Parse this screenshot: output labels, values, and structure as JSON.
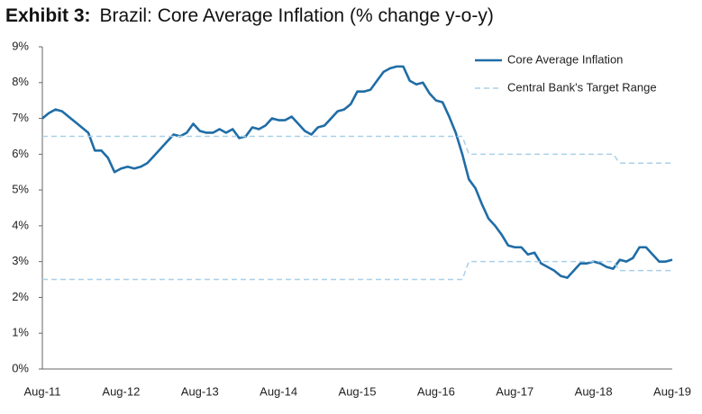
{
  "chart_data": {
    "type": "line",
    "exhibit": "Exhibit 3:",
    "title": "Brazil: Core Average Inflation (% change y-o-y)",
    "categories": [
      "Aug-11",
      null,
      null,
      null,
      null,
      null,
      null,
      null,
      null,
      null,
      null,
      null,
      "Aug-12",
      null,
      null,
      null,
      null,
      null,
      null,
      null,
      null,
      null,
      null,
      null,
      "Aug-13",
      null,
      null,
      null,
      null,
      null,
      null,
      null,
      null,
      null,
      null,
      null,
      "Aug-14",
      null,
      null,
      null,
      null,
      null,
      null,
      null,
      null,
      null,
      null,
      null,
      "Aug-15",
      null,
      null,
      null,
      null,
      null,
      null,
      null,
      null,
      null,
      null,
      null,
      "Aug-16",
      null,
      null,
      null,
      null,
      null,
      null,
      null,
      null,
      null,
      null,
      null,
      "Aug-17",
      null,
      null,
      null,
      null,
      null,
      null,
      null,
      null,
      null,
      null,
      null,
      "Aug-18",
      null,
      null,
      null,
      null,
      null,
      null,
      null,
      null,
      null,
      null,
      null,
      "Aug-19"
    ],
    "series": [
      {
        "name": "Core Average Inflation",
        "color": "#1f6da6",
        "dashed": false,
        "values": [
          7.0,
          7.15,
          7.25,
          7.2,
          7.05,
          6.9,
          6.75,
          6.6,
          6.1,
          6.1,
          5.9,
          5.5,
          5.6,
          5.65,
          5.6,
          5.65,
          5.75,
          5.95,
          6.15,
          6.35,
          6.55,
          6.5,
          6.6,
          6.85,
          6.65,
          6.6,
          6.6,
          6.7,
          6.6,
          6.7,
          6.45,
          6.5,
          6.75,
          6.7,
          6.8,
          7.0,
          6.95,
          6.95,
          7.05,
          6.85,
          6.65,
          6.55,
          6.75,
          6.8,
          7.0,
          7.2,
          7.25,
          7.4,
          7.75,
          7.75,
          7.8,
          8.05,
          8.3,
          8.4,
          8.45,
          8.45,
          8.05,
          7.95,
          8.0,
          7.7,
          7.5,
          7.45,
          7.05,
          6.6,
          6.0,
          5.3,
          5.05,
          4.6,
          4.2,
          4.0,
          3.75,
          3.45,
          3.4,
          3.4,
          3.2,
          3.25,
          2.95,
          2.85,
          2.75,
          2.6,
          2.55,
          2.75,
          2.95,
          2.95,
          3.0,
          2.95,
          2.85,
          2.8,
          3.05,
          3.0,
          3.1,
          3.4,
          3.4,
          3.2,
          3.0,
          3.0,
          3.05
        ]
      },
      {
        "name": "Central Bank's Target Range",
        "color": "#a9d0e8",
        "dashed": true,
        "values": [
          6.5,
          6.5,
          6.5,
          6.5,
          6.5,
          6.5,
          6.5,
          6.5,
          6.5,
          6.5,
          6.5,
          6.5,
          6.5,
          6.5,
          6.5,
          6.5,
          6.5,
          6.5,
          6.5,
          6.5,
          6.5,
          6.5,
          6.5,
          6.5,
          6.5,
          6.5,
          6.5,
          6.5,
          6.5,
          6.5,
          6.5,
          6.5,
          6.5,
          6.5,
          6.5,
          6.5,
          6.5,
          6.5,
          6.5,
          6.5,
          6.5,
          6.5,
          6.5,
          6.5,
          6.5,
          6.5,
          6.5,
          6.5,
          6.5,
          6.5,
          6.5,
          6.5,
          6.5,
          6.5,
          6.5,
          6.5,
          6.5,
          6.5,
          6.5,
          6.5,
          6.5,
          6.5,
          6.5,
          6.5,
          6.5,
          6.0,
          6.0,
          6.0,
          6.0,
          6.0,
          6.0,
          6.0,
          6.0,
          6.0,
          6.0,
          6.0,
          6.0,
          6.0,
          6.0,
          6.0,
          6.0,
          6.0,
          6.0,
          6.0,
          6.0,
          6.0,
          6.0,
          6.0,
          5.75,
          5.75,
          5.75,
          5.75,
          5.75,
          5.75,
          5.75,
          5.75,
          5.75
        ]
      },
      {
        "color": "#a9d0e8",
        "dashed": true,
        "values": [
          2.5,
          2.5,
          2.5,
          2.5,
          2.5,
          2.5,
          2.5,
          2.5,
          2.5,
          2.5,
          2.5,
          2.5,
          2.5,
          2.5,
          2.5,
          2.5,
          2.5,
          2.5,
          2.5,
          2.5,
          2.5,
          2.5,
          2.5,
          2.5,
          2.5,
          2.5,
          2.5,
          2.5,
          2.5,
          2.5,
          2.5,
          2.5,
          2.5,
          2.5,
          2.5,
          2.5,
          2.5,
          2.5,
          2.5,
          2.5,
          2.5,
          2.5,
          2.5,
          2.5,
          2.5,
          2.5,
          2.5,
          2.5,
          2.5,
          2.5,
          2.5,
          2.5,
          2.5,
          2.5,
          2.5,
          2.5,
          2.5,
          2.5,
          2.5,
          2.5,
          2.5,
          2.5,
          2.5,
          2.5,
          2.5,
          3.0,
          3.0,
          3.0,
          3.0,
          3.0,
          3.0,
          3.0,
          3.0,
          3.0,
          3.0,
          3.0,
          3.0,
          3.0,
          3.0,
          3.0,
          3.0,
          3.0,
          3.0,
          3.0,
          3.0,
          3.0,
          3.0,
          3.0,
          2.75,
          2.75,
          2.75,
          2.75,
          2.75,
          2.75,
          2.75,
          2.75,
          2.75
        ]
      }
    ],
    "ylim": [
      0,
      9
    ],
    "yticks": [
      {
        "value": 0,
        "label": "0%"
      },
      {
        "value": 1,
        "label": "1%"
      },
      {
        "value": 2,
        "label": "2%"
      },
      {
        "value": 3,
        "label": "3%"
      },
      {
        "value": 4,
        "label": "4%"
      },
      {
        "value": 5,
        "label": "5%"
      },
      {
        "value": 6,
        "label": "6%"
      },
      {
        "value": 7,
        "label": "7%"
      },
      {
        "value": 8,
        "label": "8%"
      },
      {
        "value": 9,
        "label": "9%"
      }
    ],
    "grid": false,
    "legend": "upper-right"
  }
}
